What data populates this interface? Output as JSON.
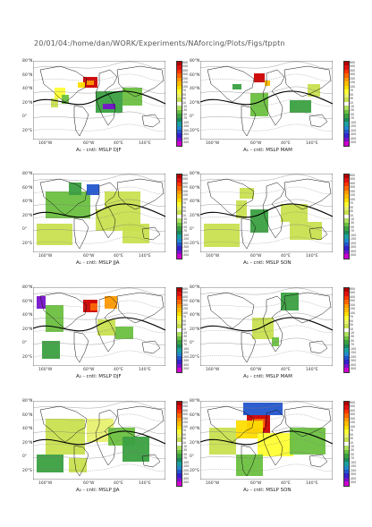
{
  "header": "20/01/04:/home/dan/WORK/Experiments/NAforcing/Plots/Figs/tpptn",
  "lat_labels": [
    "80°N",
    "60°N",
    "40°N",
    "20°N",
    "0°",
    "20°S"
  ],
  "lon_labels": [
    "160°W",
    "60°W",
    "40°E",
    "140°E"
  ],
  "colorbar_ticks": [
    "600",
    "500",
    "400",
    "300",
    "200",
    "150",
    "100",
    "70",
    "50",
    "30",
    "10",
    "-10",
    "-30",
    "-50",
    "-70",
    "-100",
    "-150",
    "-200",
    "-300",
    "-400",
    "-500"
  ],
  "colorbar_colors": [
    "#b00000",
    "#e01010",
    "#ff3300",
    "#ff6600",
    "#ff9900",
    "#ffbb00",
    "#ffdd00",
    "#ffff33",
    "#e8f070",
    "#c8e050",
    "#ffffff",
    "#aee060",
    "#6cc040",
    "#3aa040",
    "#1a8a5a",
    "#1aa0a0",
    "#2288cc",
    "#2255cc",
    "#3322cc",
    "#7711cc",
    "#cc00cc"
  ],
  "panels": [
    {
      "caption": "A₁ - cntl: MSLP DJF",
      "pattern": "djf1"
    },
    {
      "caption": "A₁ - cntl: MSLP MAM",
      "pattern": "mam1"
    },
    {
      "caption": "A₁ - cntl: MSLP JJA",
      "pattern": "jja1"
    },
    {
      "caption": "A₁ - cntl: MSLP SON",
      "pattern": "son1"
    },
    {
      "caption": "A₂ - cntl: MSLP DJF",
      "pattern": "djf2"
    },
    {
      "caption": "A₂ - cntl: MSLP MAM",
      "pattern": "mam2"
    },
    {
      "caption": "A₂ - cntl: MSLP JJA",
      "pattern": "jja2"
    },
    {
      "caption": "A₂ - cntl: MSLP SON",
      "pattern": "son2"
    }
  ]
}
